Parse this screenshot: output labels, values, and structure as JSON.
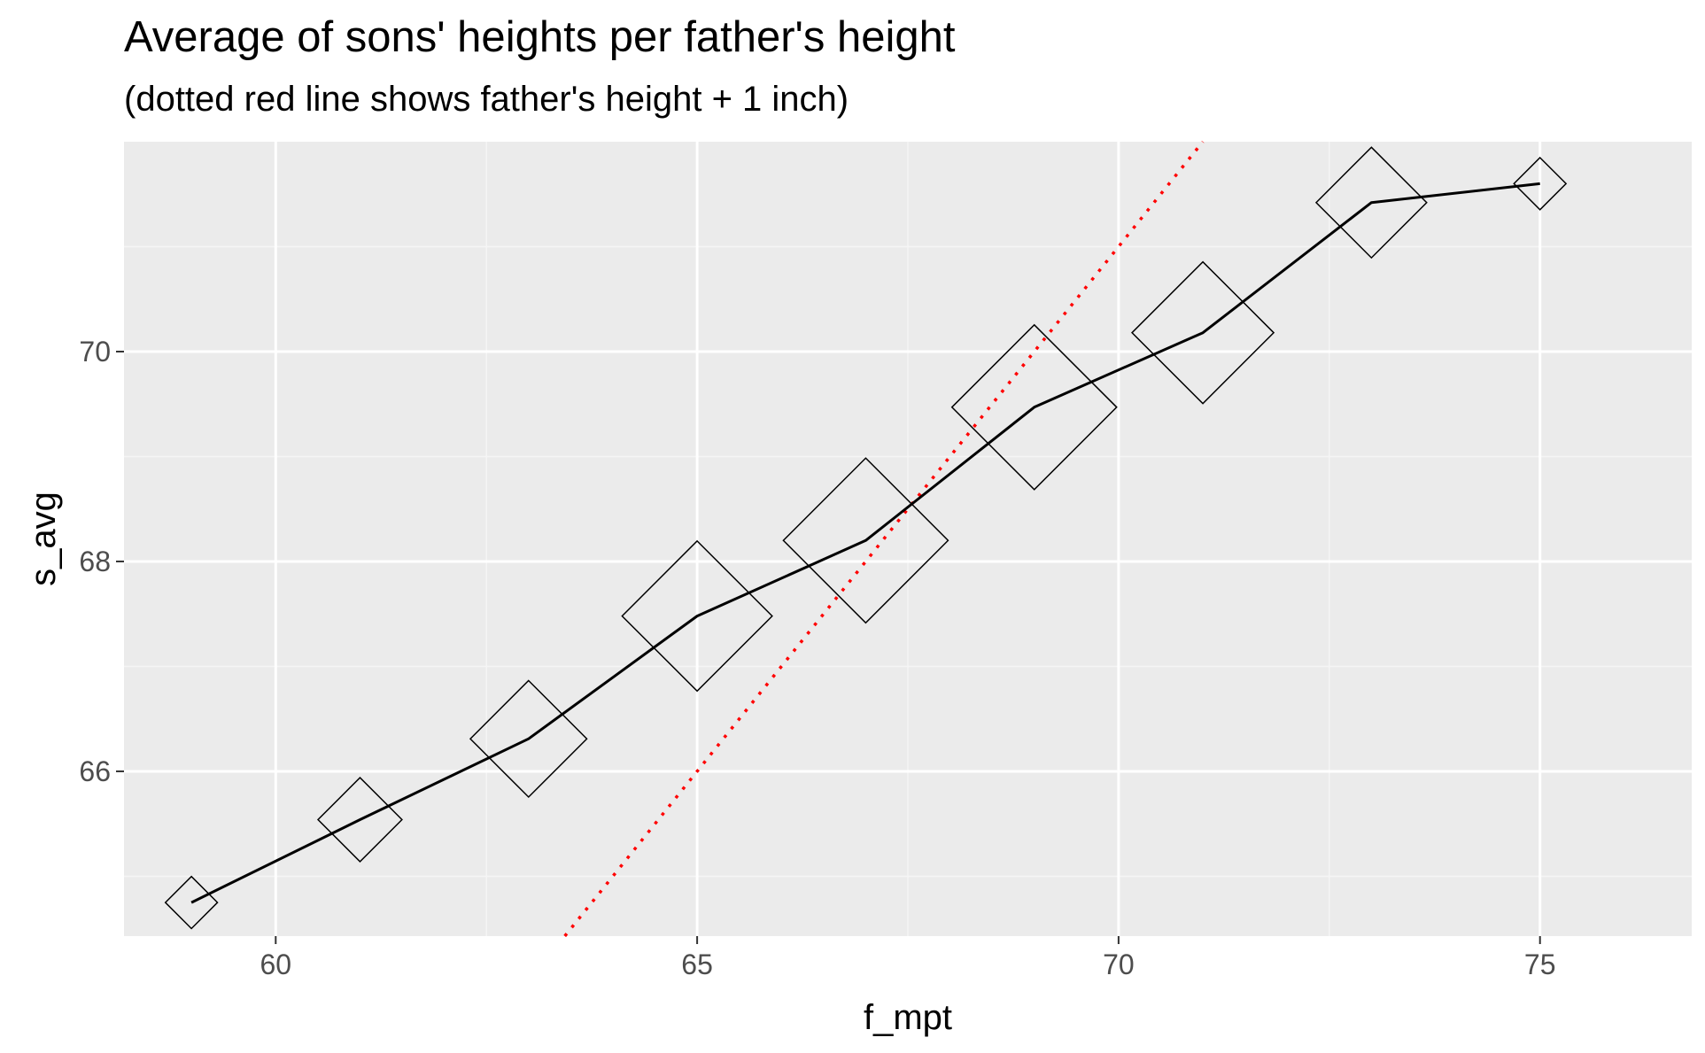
{
  "chart_data": {
    "type": "line",
    "title": "Average of sons' heights per father's height",
    "subtitle": "(dotted red line shows father's height + 1 inch)",
    "xlabel": "f_mpt",
    "ylabel": "s_avg",
    "xlim": [
      58.2,
      76.8
    ],
    "ylim": [
      64.43,
      72.0
    ],
    "x_ticks": [
      60,
      65,
      70,
      75
    ],
    "y_ticks": [
      66,
      68,
      70
    ],
    "grid": true,
    "legend": "none",
    "series": [
      {
        "x": [
          59,
          61,
          63,
          65,
          67,
          69,
          71,
          73,
          75
        ],
        "values": [
          64.75,
          65.54,
          66.31,
          67.48,
          68.2,
          69.47,
          70.18,
          71.42,
          71.6
        ],
        "marker": "open-diamond",
        "marker_size_relative": [
          0.1,
          0.26,
          0.5,
          0.83,
          1.0,
          1.0,
          0.74,
          0.45,
          0.1
        ],
        "color": "#000000"
      }
    ],
    "reference_line": {
      "equation": "y = x + 1",
      "slope": 1,
      "intercept": 1,
      "style": "dotted",
      "color": "#ff0000"
    },
    "colors": {
      "panel_background": "#ebebeb",
      "grid_major": "#ffffff",
      "grid_minor": "#f5f5f5",
      "series_line": "#000000",
      "reference_line": "#ff0000"
    }
  }
}
